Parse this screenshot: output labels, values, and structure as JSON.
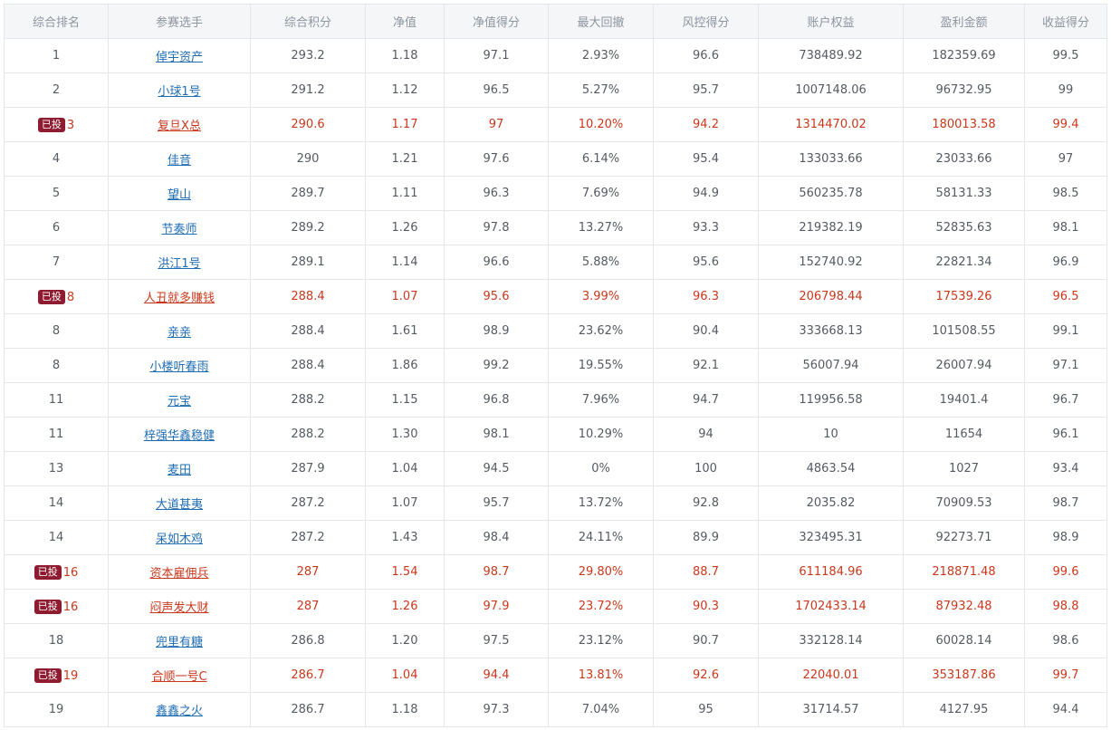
{
  "table": {
    "headers": [
      "综合排名",
      "参赛选手",
      "综合积分",
      "净值",
      "净值得分",
      "最大回撤",
      "风控得分",
      "账户权益",
      "盈利金额",
      "收益得分"
    ],
    "invested_label": "已投",
    "rows": [
      {
        "invested": false,
        "rank": "1",
        "player": "倬宇资产",
        "score": "293.2",
        "nav": "1.18",
        "nav_score": "97.1",
        "max_drawdown": "2.93%",
        "risk_score": "96.6",
        "equity": "738489.92",
        "profit": "182359.69",
        "return_score": "99.5"
      },
      {
        "invested": false,
        "rank": "2",
        "player": "小球1号",
        "score": "291.2",
        "nav": "1.12",
        "nav_score": "96.5",
        "max_drawdown": "5.27%",
        "risk_score": "95.7",
        "equity": "1007148.06",
        "profit": "96732.95",
        "return_score": "99"
      },
      {
        "invested": true,
        "rank": "3",
        "player": "复旦X总",
        "score": "290.6",
        "nav": "1.17",
        "nav_score": "97",
        "max_drawdown": "10.20%",
        "risk_score": "94.2",
        "equity": "1314470.02",
        "profit": "180013.58",
        "return_score": "99.4"
      },
      {
        "invested": false,
        "rank": "4",
        "player": "佳音",
        "score": "290",
        "nav": "1.21",
        "nav_score": "97.6",
        "max_drawdown": "6.14%",
        "risk_score": "95.4",
        "equity": "133033.66",
        "profit": "23033.66",
        "return_score": "97"
      },
      {
        "invested": false,
        "rank": "5",
        "player": "望山",
        "score": "289.7",
        "nav": "1.11",
        "nav_score": "96.3",
        "max_drawdown": "7.69%",
        "risk_score": "94.9",
        "equity": "560235.78",
        "profit": "58131.33",
        "return_score": "98.5"
      },
      {
        "invested": false,
        "rank": "6",
        "player": "节奏师",
        "score": "289.2",
        "nav": "1.26",
        "nav_score": "97.8",
        "max_drawdown": "13.27%",
        "risk_score": "93.3",
        "equity": "219382.19",
        "profit": "52835.63",
        "return_score": "98.1"
      },
      {
        "invested": false,
        "rank": "7",
        "player": "洪江1号",
        "score": "289.1",
        "nav": "1.14",
        "nav_score": "96.6",
        "max_drawdown": "5.88%",
        "risk_score": "95.6",
        "equity": "152740.92",
        "profit": "22821.34",
        "return_score": "96.9"
      },
      {
        "invested": true,
        "rank": "8",
        "player": "人丑就多赚钱",
        "score": "288.4",
        "nav": "1.07",
        "nav_score": "95.6",
        "max_drawdown": "3.99%",
        "risk_score": "96.3",
        "equity": "206798.44",
        "profit": "17539.26",
        "return_score": "96.5"
      },
      {
        "invested": false,
        "rank": "8",
        "player": "亲亲",
        "score": "288.4",
        "nav": "1.61",
        "nav_score": "98.9",
        "max_drawdown": "23.62%",
        "risk_score": "90.4",
        "equity": "333668.13",
        "profit": "101508.55",
        "return_score": "99.1"
      },
      {
        "invested": false,
        "rank": "8",
        "player": "小楼听春雨",
        "score": "288.4",
        "nav": "1.86",
        "nav_score": "99.2",
        "max_drawdown": "19.55%",
        "risk_score": "92.1",
        "equity": "56007.94",
        "profit": "26007.94",
        "return_score": "97.1"
      },
      {
        "invested": false,
        "rank": "11",
        "player": "元宝",
        "score": "288.2",
        "nav": "1.15",
        "nav_score": "96.8",
        "max_drawdown": "7.96%",
        "risk_score": "94.7",
        "equity": "119956.58",
        "profit": "19401.4",
        "return_score": "96.7"
      },
      {
        "invested": false,
        "rank": "11",
        "player": "梓强华鑫稳健",
        "score": "288.2",
        "nav": "1.30",
        "nav_score": "98.1",
        "max_drawdown": "10.29%",
        "risk_score": "94",
        "equity": "10",
        "profit": "11654",
        "return_score": "96.1"
      },
      {
        "invested": false,
        "rank": "13",
        "player": "麦田",
        "score": "287.9",
        "nav": "1.04",
        "nav_score": "94.5",
        "max_drawdown": "0%",
        "risk_score": "100",
        "equity": "4863.54",
        "profit": "1027",
        "return_score": "93.4"
      },
      {
        "invested": false,
        "rank": "14",
        "player": "大道甚夷",
        "score": "287.2",
        "nav": "1.07",
        "nav_score": "95.7",
        "max_drawdown": "13.72%",
        "risk_score": "92.8",
        "equity": "2035.82",
        "profit": "70909.53",
        "return_score": "98.7"
      },
      {
        "invested": false,
        "rank": "14",
        "player": "呆如木鸡",
        "score": "287.2",
        "nav": "1.43",
        "nav_score": "98.4",
        "max_drawdown": "24.11%",
        "risk_score": "89.9",
        "equity": "323495.31",
        "profit": "92273.71",
        "return_score": "98.9"
      },
      {
        "invested": true,
        "rank": "16",
        "player": "资本雇佣兵",
        "score": "287",
        "nav": "1.54",
        "nav_score": "98.7",
        "max_drawdown": "29.80%",
        "risk_score": "88.7",
        "equity": "611184.96",
        "profit": "218871.48",
        "return_score": "99.6"
      },
      {
        "invested": true,
        "rank": "16",
        "player": "闷声发大财",
        "score": "287",
        "nav": "1.26",
        "nav_score": "97.9",
        "max_drawdown": "23.72%",
        "risk_score": "90.3",
        "equity": "1702433.14",
        "profit": "87932.48",
        "return_score": "98.8"
      },
      {
        "invested": false,
        "rank": "18",
        "player": "兜里有糖",
        "score": "286.8",
        "nav": "1.20",
        "nav_score": "97.5",
        "max_drawdown": "23.12%",
        "risk_score": "90.7",
        "equity": "332128.14",
        "profit": "60028.14",
        "return_score": "98.6"
      },
      {
        "invested": true,
        "rank": "19",
        "player": "合顺一号C",
        "score": "286.7",
        "nav": "1.04",
        "nav_score": "94.4",
        "max_drawdown": "13.81%",
        "risk_score": "92.6",
        "equity": "22040.01",
        "profit": "353187.86",
        "return_score": "99.7"
      },
      {
        "invested": false,
        "rank": "19",
        "player": "鑫鑫之火",
        "score": "286.7",
        "nav": "1.18",
        "nav_score": "97.3",
        "max_drawdown": "7.04%",
        "risk_score": "95",
        "equity": "31714.57",
        "profit": "4127.95",
        "return_score": "94.4"
      }
    ]
  }
}
